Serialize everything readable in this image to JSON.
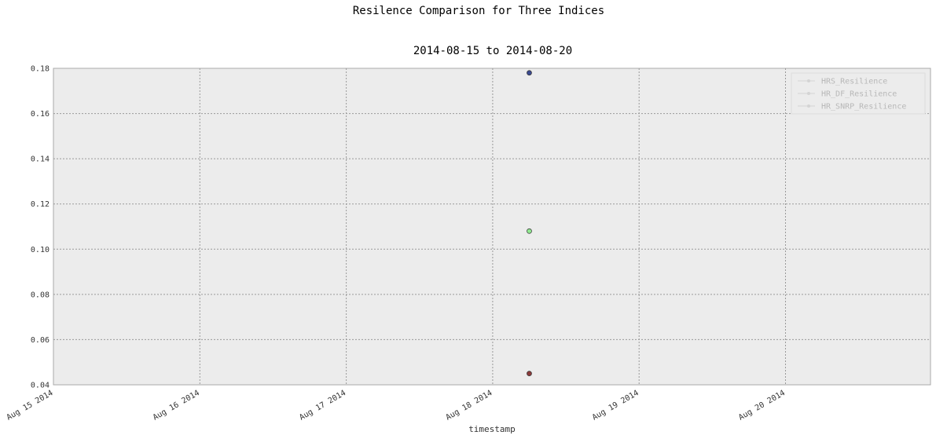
{
  "chart_data": {
    "type": "scatter",
    "title": "Resilence Comparison for Three Indices",
    "subtitle": "2014-08-15 to 2014-08-20",
    "xlabel": "timestamp",
    "ylabel": "",
    "x_ticks": [
      "Aug 15 2014",
      "Aug 16 2014",
      "Aug 17 2014",
      "Aug 18 2014",
      "Aug 19 2014",
      "Aug 20 2014"
    ],
    "xlim": [
      "2014-08-15",
      "2014-08-21"
    ],
    "ylim": [
      0.04,
      0.18
    ],
    "y_ticks": [
      "0.04",
      "0.06",
      "0.08",
      "0.10",
      "0.12",
      "0.14",
      "0.16",
      "0.18"
    ],
    "grid": true,
    "legend_placement": "top-right",
    "series": [
      {
        "name": "HRS_Resilience",
        "color": "#3b4a8f",
        "points": [
          {
            "x": "2014-08-18 06:00",
            "y": 0.178
          }
        ]
      },
      {
        "name": "HR_DF_Resilience",
        "color": "#90e890",
        "points": [
          {
            "x": "2014-08-18 06:00",
            "y": 0.108
          }
        ]
      },
      {
        "name": "HR_SNRP_Resilience",
        "color": "#8b3a3a",
        "points": [
          {
            "x": "2014-08-18 06:00",
            "y": 0.045
          }
        ]
      }
    ]
  }
}
